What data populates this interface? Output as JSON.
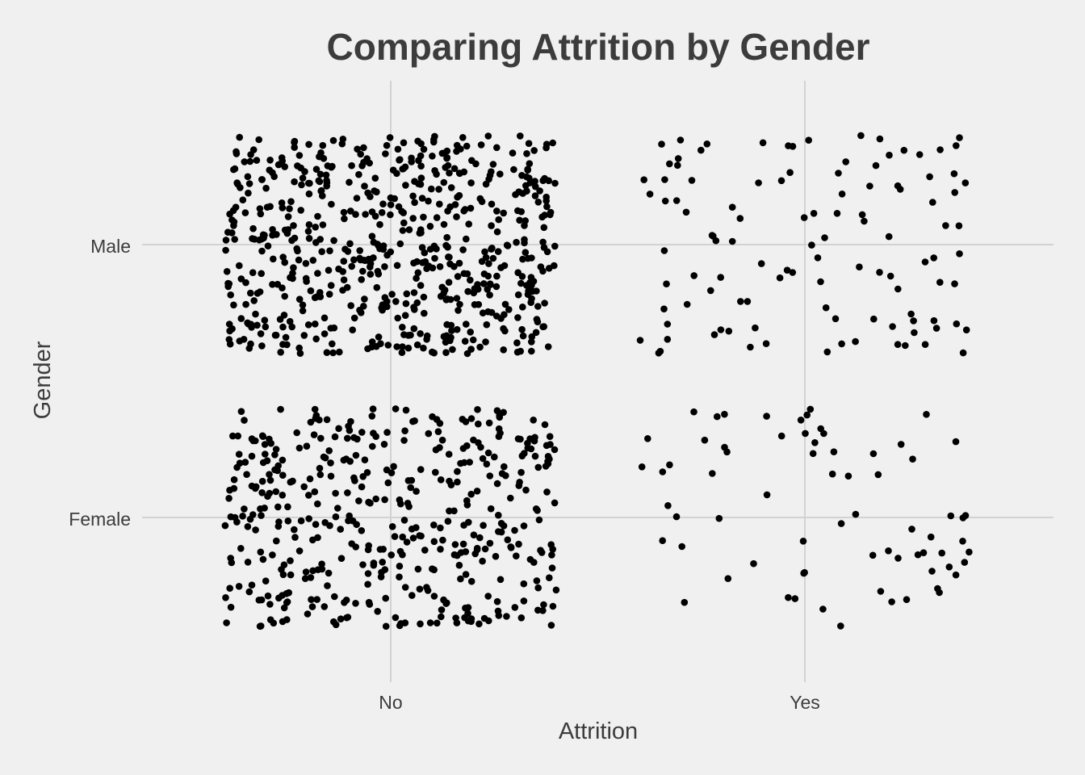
{
  "chart_data": {
    "type": "scatter",
    "title": "Comparing Attrition by Gender",
    "xlabel": "Attrition",
    "ylabel": "Gender",
    "x_categories": [
      "No",
      "Yes"
    ],
    "y_categories": [
      "Female",
      "Male"
    ],
    "jitter": 0.4,
    "grid": true,
    "point_color": "#000000",
    "background": "#f0f0f0",
    "groups": [
      {
        "x": "No",
        "y": "Male",
        "count": 620
      },
      {
        "x": "No",
        "y": "Female",
        "count": 440
      },
      {
        "x": "Yes",
        "y": "Male",
        "count": 110
      },
      {
        "x": "Yes",
        "y": "Female",
        "count": 70
      }
    ]
  }
}
